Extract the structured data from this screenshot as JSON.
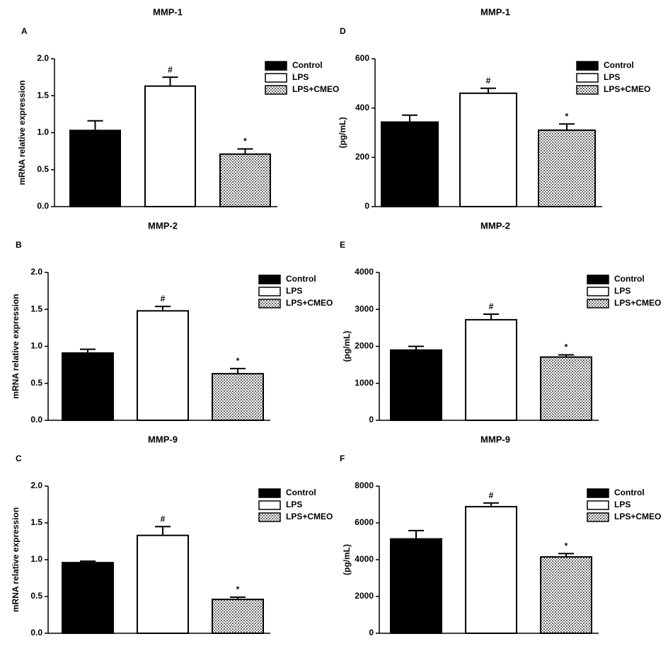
{
  "chart_data": [
    {
      "type": "bar",
      "panel": "A",
      "title": "MMP-1",
      "ylabel": "mRNA relative expression",
      "ylim": [
        0,
        2
      ],
      "yticks": [
        {
          "value": 0,
          "label": "0.0"
        },
        0.5,
        {
          "value": 1,
          "label": "1.0"
        },
        1.5,
        {
          "value": 2,
          "label": "2.0"
        }
      ],
      "series": [
        {
          "name": "Control",
          "color": "#000000",
          "values": [
            1.03
          ],
          "errors": [
            0.13
          ]
        },
        {
          "name": "LPS",
          "color": "#ffffff",
          "values": [
            1.63
          ],
          "errors": [
            0.12
          ],
          "annotation": "#"
        },
        {
          "name": "LPS+CMEO",
          "color": "#666666",
          "pattern": "crosshatch",
          "values": [
            0.71
          ],
          "errors": [
            0.07
          ],
          "annotation": "*"
        }
      ]
    },
    {
      "type": "bar",
      "panel": "B",
      "title": "MMP-2",
      "ylabel": "mRNA relative expression",
      "ylim": [
        0,
        2
      ],
      "yticks": [
        {
          "value": 0,
          "label": "0.0"
        },
        0.5,
        {
          "value": 1,
          "label": "1.0"
        },
        1.5,
        {
          "value": 2,
          "label": "2.0"
        }
      ],
      "series": [
        {
          "name": "Control",
          "color": "#000000",
          "values": [
            0.91
          ],
          "errors": [
            0.05
          ]
        },
        {
          "name": "LPS",
          "color": "#ffffff",
          "values": [
            1.48
          ],
          "errors": [
            0.06
          ],
          "annotation": "#"
        },
        {
          "name": "LPS+CMEO",
          "color": "#666666",
          "pattern": "crosshatch",
          "values": [
            0.63
          ],
          "errors": [
            0.07
          ],
          "annotation": "*"
        }
      ]
    },
    {
      "type": "bar",
      "panel": "C",
      "title": "MMP-9",
      "ylabel": "mRNA relative expression",
      "ylim": [
        0,
        2
      ],
      "yticks": [
        {
          "value": 0,
          "label": "0.0"
        },
        0.5,
        {
          "value": 1,
          "label": "1.0"
        },
        1.5,
        {
          "value": 2,
          "label": "2.0"
        }
      ],
      "series": [
        {
          "name": "Control",
          "color": "#000000",
          "values": [
            0.96
          ],
          "errors": [
            0.02
          ]
        },
        {
          "name": "LPS",
          "color": "#ffffff",
          "values": [
            1.33
          ],
          "errors": [
            0.12
          ],
          "annotation": "#"
        },
        {
          "name": "LPS+CMEO",
          "color": "#666666",
          "pattern": "crosshatch",
          "values": [
            0.46
          ],
          "errors": [
            0.03
          ],
          "annotation": "*"
        }
      ]
    },
    {
      "type": "bar",
      "panel": "D",
      "title": "MMP-1",
      "ylabel": "(pg/mL)",
      "ylim": [
        0,
        600
      ],
      "yticks": [
        0,
        200,
        400,
        600
      ],
      "series": [
        {
          "name": "Control",
          "color": "#000000",
          "values": [
            343
          ],
          "errors": [
            28
          ]
        },
        {
          "name": "LPS",
          "color": "#ffffff",
          "values": [
            460
          ],
          "errors": [
            20
          ],
          "annotation": "#"
        },
        {
          "name": "LPS+CMEO",
          "color": "#666666",
          "pattern": "crosshatch",
          "values": [
            310
          ],
          "errors": [
            25
          ],
          "annotation": "*"
        }
      ]
    },
    {
      "type": "bar",
      "panel": "E",
      "title": "MMP-2",
      "ylabel": "(pg/mL)",
      "ylim": [
        0,
        4000
      ],
      "yticks": [
        0,
        1000,
        2000,
        3000,
        4000
      ],
      "series": [
        {
          "name": "Control",
          "color": "#000000",
          "values": [
            1900
          ],
          "errors": [
            100
          ]
        },
        {
          "name": "LPS",
          "color": "#ffffff",
          "values": [
            2720
          ],
          "errors": [
            150
          ],
          "annotation": "#"
        },
        {
          "name": "LPS+CMEO",
          "color": "#666666",
          "pattern": "crosshatch",
          "values": [
            1710
          ],
          "errors": [
            60
          ],
          "annotation": "*"
        }
      ]
    },
    {
      "type": "bar",
      "panel": "F",
      "title": "MMP-9",
      "ylabel": "(pg/mL)",
      "ylim": [
        0,
        8000
      ],
      "yticks": [
        0,
        2000,
        4000,
        6000,
        8000
      ],
      "series": [
        {
          "name": "Control",
          "color": "#000000",
          "values": [
            5130
          ],
          "errors": [
            450
          ]
        },
        {
          "name": "LPS",
          "color": "#ffffff",
          "values": [
            6880
          ],
          "errors": [
            200
          ],
          "annotation": "#"
        },
        {
          "name": "LPS+CMEO",
          "color": "#666666",
          "pattern": "crosshatch",
          "values": [
            4150
          ],
          "errors": [
            180
          ],
          "annotation": "*"
        }
      ]
    }
  ]
}
